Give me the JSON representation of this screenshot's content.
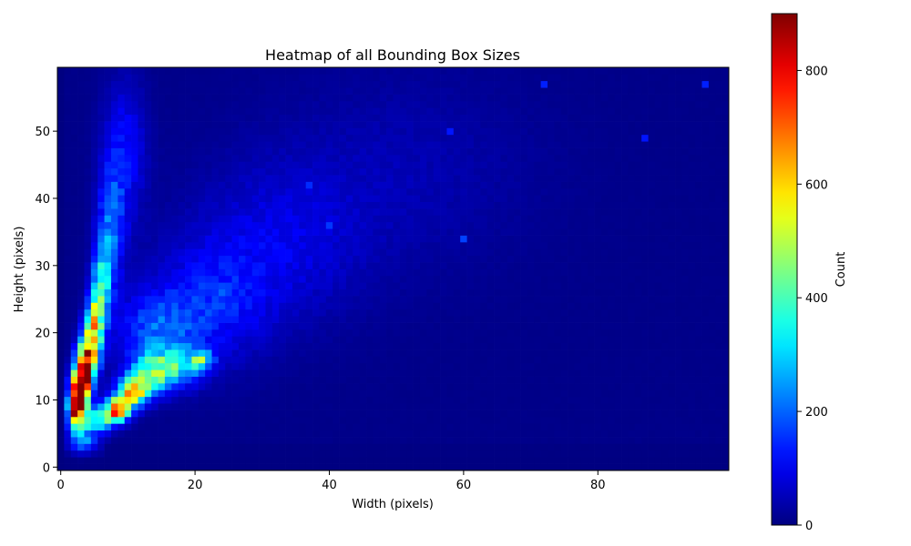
{
  "chart_data": {
    "type": "heatmap",
    "title": "Heatmap of all Bounding Box Sizes",
    "xlabel": "Width (pixels)",
    "ylabel": "Height (pixels)",
    "xlim": [
      -0.5,
      99.5
    ],
    "ylim": [
      -0.5,
      59.5
    ],
    "x_ticks": [
      0,
      20,
      40,
      60,
      80
    ],
    "y_ticks": [
      0,
      10,
      20,
      30,
      40,
      50
    ],
    "colormap": "jet",
    "colorbar": {
      "label": "Count",
      "vmin": 0,
      "vmax": 900,
      "ticks": [
        0,
        200,
        400,
        600,
        800
      ]
    },
    "grid": false,
    "bins": {
      "x_count": 100,
      "y_count": 60
    },
    "hotspots": [
      {
        "x": 2,
        "y": 8,
        "value": 880
      },
      {
        "x": 3,
        "y": 12,
        "value": 900
      },
      {
        "x": 3,
        "y": 14,
        "value": 780
      },
      {
        "x": 4,
        "y": 16,
        "value": 720
      },
      {
        "x": 5,
        "y": 19,
        "value": 640
      },
      {
        "x": 5,
        "y": 23,
        "value": 520
      },
      {
        "x": 8,
        "y": 8,
        "value": 780
      },
      {
        "x": 10,
        "y": 11,
        "value": 680
      },
      {
        "x": 13,
        "y": 14,
        "value": 420
      },
      {
        "x": 21,
        "y": 16,
        "value": 520
      },
      {
        "x": 6,
        "y": 30,
        "value": 380
      },
      {
        "x": 7,
        "y": 35,
        "value": 230
      },
      {
        "x": 24,
        "y": 26,
        "value": 200
      },
      {
        "x": 40,
        "y": 36,
        "value": 160
      },
      {
        "x": 60,
        "y": 34,
        "value": 170
      },
      {
        "x": 72,
        "y": 57,
        "value": 140
      },
      {
        "x": 96,
        "y": 57,
        "value": 140
      },
      {
        "x": 87,
        "y": 49,
        "value": 130
      },
      {
        "x": 58,
        "y": 50,
        "value": 130
      },
      {
        "x": 37,
        "y": 42,
        "value": 150
      }
    ]
  }
}
